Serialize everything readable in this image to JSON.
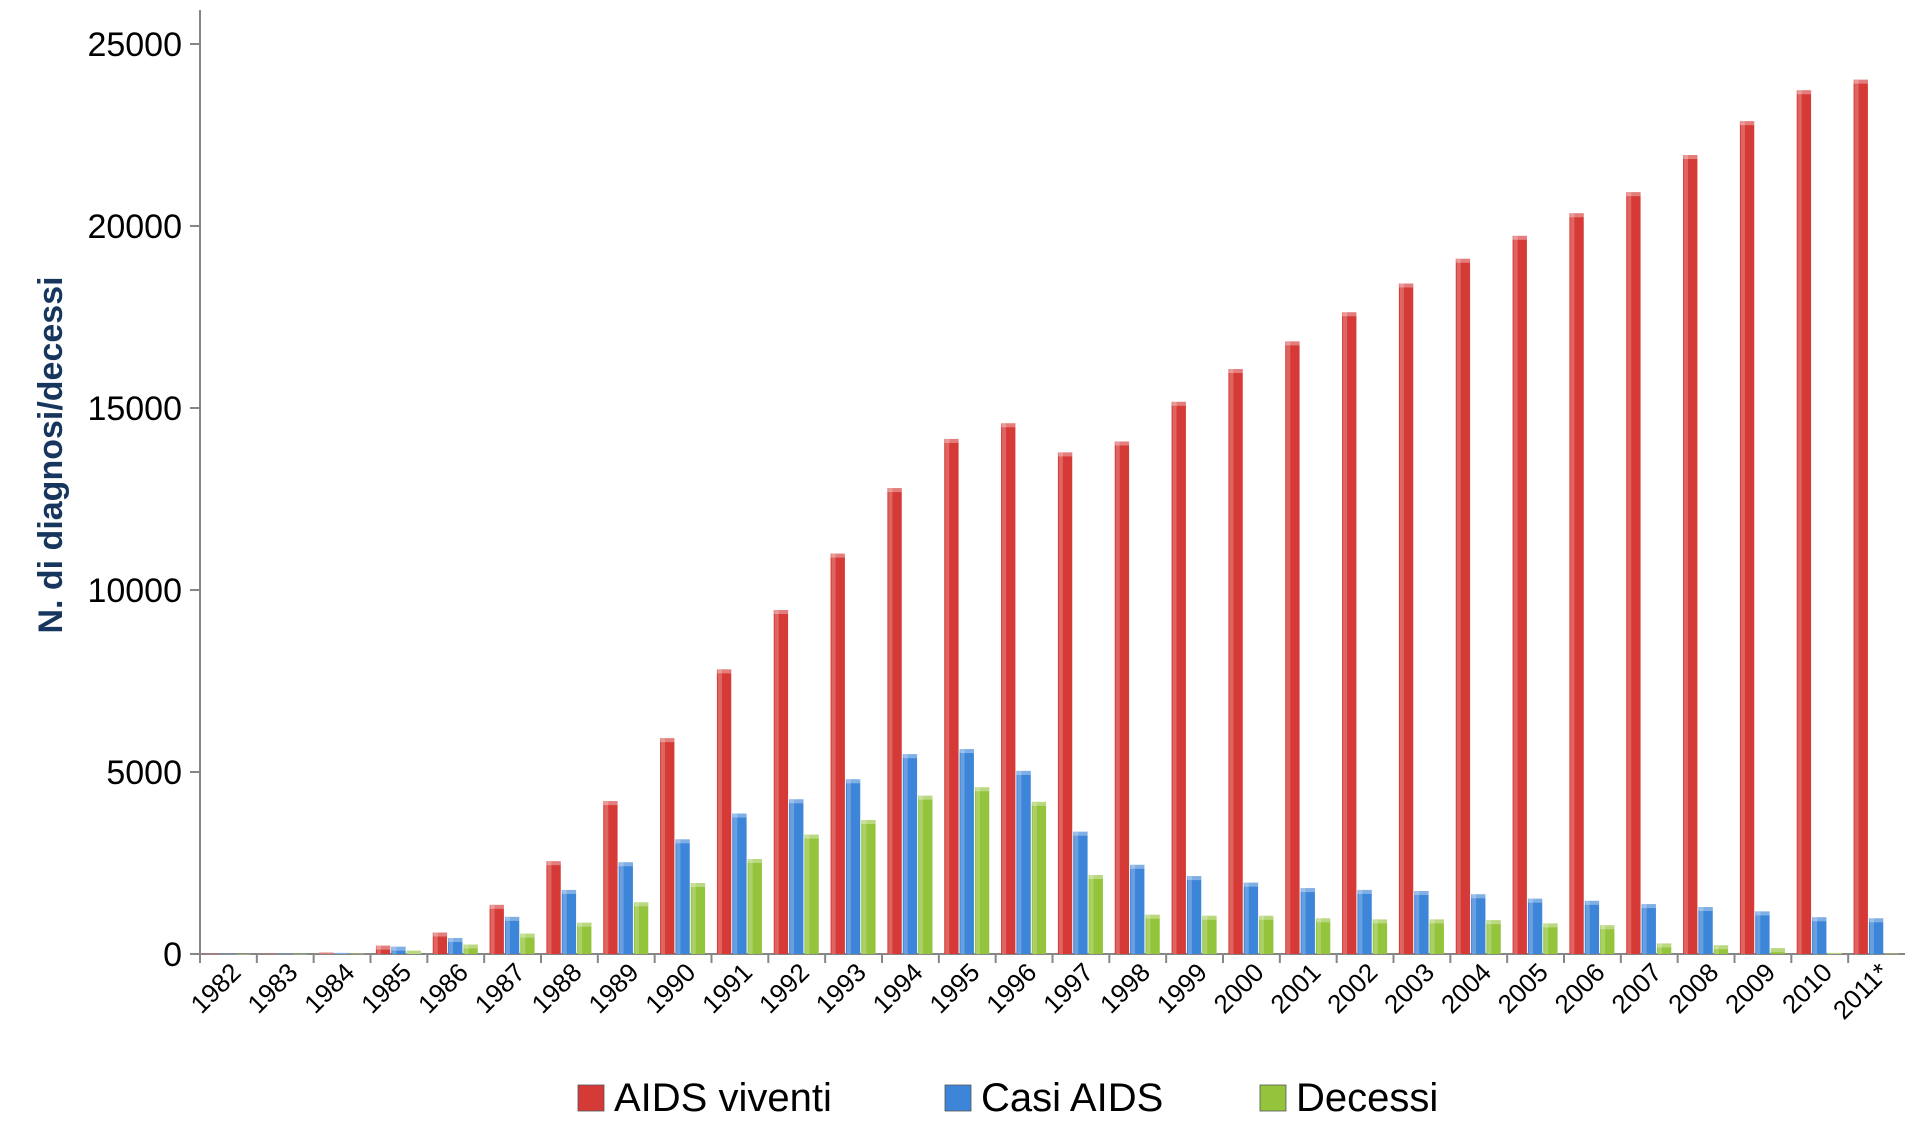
{
  "chart_data": {
    "type": "bar",
    "title": "",
    "xlabel": "",
    "ylabel": "N. di diagnosi/decessi",
    "ylim": [
      0,
      25000
    ],
    "yticks": [
      0,
      5000,
      10000,
      15000,
      20000,
      25000
    ],
    "grid": false,
    "legend_position": "bottom",
    "categories": [
      "1982",
      "1983",
      "1984",
      "1985",
      "1986",
      "1987",
      "1988",
      "1989",
      "1990",
      "1991",
      "1992",
      "1993",
      "1994",
      "1995",
      "1996",
      "1997",
      "1998",
      "1999",
      "2000",
      "2001",
      "2002",
      "2003",
      "2004",
      "2005",
      "2006",
      "2007",
      "2008",
      "2009",
      "2010",
      "2011*"
    ],
    "series": [
      {
        "name": "AIDS viventi",
        "color": "#d63a36",
        "values": [
          5,
          10,
          40,
          230,
          590,
          1350,
          2550,
          4200,
          5930,
          7820,
          9450,
          11000,
          12800,
          14150,
          14580,
          13780,
          14080,
          15170,
          16070,
          16830,
          17630,
          18420,
          19100,
          19730,
          20350,
          20930,
          21950,
          22880,
          23730,
          24020
        ]
      },
      {
        "name": "Casi AIDS",
        "color": "#3d85d8",
        "values": [
          3,
          8,
          30,
          200,
          440,
          1020,
          1760,
          2520,
          3150,
          3860,
          4250,
          4800,
          5490,
          5630,
          5030,
          3360,
          2450,
          2140,
          1960,
          1810,
          1760,
          1730,
          1640,
          1520,
          1460,
          1370,
          1290,
          1170,
          1010,
          980
        ]
      },
      {
        "name": "Decessi",
        "color": "#94c43c",
        "values": [
          1,
          3,
          10,
          90,
          260,
          560,
          860,
          1420,
          1950,
          2610,
          3280,
          3680,
          4350,
          4580,
          4180,
          2170,
          1080,
          1050,
          1050,
          980,
          950,
          950,
          930,
          840,
          790,
          290,
          240,
          160,
          30,
          10
        ]
      }
    ]
  }
}
